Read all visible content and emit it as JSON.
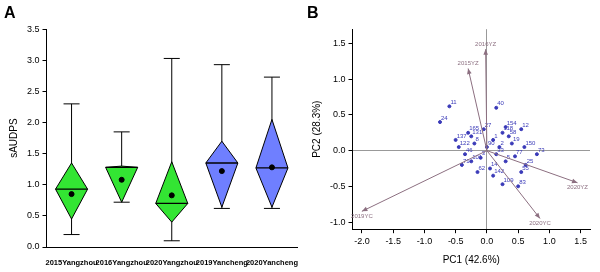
{
  "chart_data": [
    {
      "type": "boxplot",
      "title": "A",
      "y_label": "sAUDPS",
      "categories": [
        "2015Yangzhou",
        "2016Yangzhou",
        "2020Yangzhou",
        "2019Yancheng",
        "2020Yancheng"
      ],
      "colors": [
        "#33e533",
        "#33e533",
        "#33e533",
        "#6f7fff",
        "#6f7fff"
      ],
      "min": [
        0.2,
        0.72,
        0.1,
        0.62,
        0.62
      ],
      "q1": [
        0.45,
        0.72,
        0.4,
        0.64,
        0.64
      ],
      "median": [
        0.93,
        1.28,
        0.7,
        1.35,
        1.27
      ],
      "q3": [
        1.35,
        1.3,
        1.37,
        1.7,
        2.05
      ],
      "max": [
        2.3,
        1.85,
        3.03,
        2.93,
        2.73
      ],
      "mean": [
        0.85,
        1.08,
        0.83,
        1.22,
        1.28
      ],
      "ylim": [
        0,
        3.5
      ],
      "yticks": [
        {
          "value": 0,
          "label": "0.0"
        },
        {
          "value": 0.5,
          "label": "0.5"
        },
        {
          "value": 1,
          "label": "1.0"
        },
        {
          "value": 1.5,
          "label": "1.5"
        },
        {
          "value": 2,
          "label": "2.0"
        },
        {
          "value": 2.5,
          "label": "2.5"
        },
        {
          "value": 3,
          "label": "3.0"
        },
        {
          "value": 3.5,
          "label": "3.5"
        }
      ],
      "grid": false
    },
    {
      "type": "biplot",
      "title": "B",
      "x_label": "PC1 (42.6%)",
      "y_label": "PC2 (28.3%)",
      "color": "#3a3ab8",
      "points": {
        "labels": [
          "11",
          "24",
          "40",
          "12",
          "154",
          "71",
          "73",
          "109",
          "55",
          "83",
          "25",
          "122",
          "165",
          "131",
          "1",
          "2",
          "3",
          "5",
          "8",
          "14",
          "19",
          "27",
          "33",
          "46",
          "58",
          "62",
          "77",
          "90",
          "101",
          "118",
          "137",
          "142",
          "150"
        ],
        "x": [
          -0.6,
          -0.75,
          0.15,
          0.55,
          0.3,
          -0.4,
          0.8,
          0.25,
          0.55,
          0.5,
          0.62,
          -0.45,
          -0.3,
          -0.25,
          0.1,
          0.2,
          -0.1,
          0.3,
          -0.2,
          0.05,
          0.4,
          -0.05,
          0.15,
          -0.35,
          0.35,
          -0.15,
          0.45,
          0.0,
          -0.25,
          0.25,
          -0.5,
          0.1,
          0.6
        ],
        "y": [
          0.62,
          0.4,
          0.6,
          0.3,
          0.33,
          -0.2,
          -0.05,
          -0.47,
          -0.3,
          -0.5,
          -0.2,
          0.05,
          0.25,
          0.2,
          0.15,
          0.05,
          -0.1,
          -0.15,
          0.1,
          -0.25,
          0.1,
          0.3,
          -0.05,
          -0.05,
          0.2,
          -0.3,
          -0.08,
          0.05,
          -0.15,
          0.25,
          0.15,
          -0.35,
          0.05
        ]
      },
      "vectors": {
        "labels": [
          "2016YZ",
          "2015YZ",
          "2019YC",
          "2020YZ",
          "2020YC"
        ],
        "x": [
          -0.02,
          -0.3,
          -2.0,
          1.45,
          0.85
        ],
        "y": [
          1.42,
          1.15,
          -0.85,
          -0.45,
          -0.95
        ],
        "color": "#8c6f80"
      },
      "xlim": [
        -2.15,
        1.65
      ],
      "xticks": [
        {
          "value": -2,
          "label": "-2.0"
        },
        {
          "value": -1.5,
          "label": "-1.5"
        },
        {
          "value": -1,
          "label": "-1.0"
        },
        {
          "value": -0.5,
          "label": "-0.5"
        },
        {
          "value": 0,
          "label": "0.0"
        },
        {
          "value": 0.5,
          "label": "0.5"
        },
        {
          "value": 1,
          "label": "1.0"
        },
        {
          "value": 1.5,
          "label": "1.5"
        }
      ],
      "ylim": [
        -1.1,
        1.7
      ],
      "yticks": [
        {
          "value": -1,
          "label": "-1.0"
        },
        {
          "value": -0.5,
          "label": "-0.5"
        },
        {
          "value": 0,
          "label": "0.0"
        },
        {
          "value": 0.5,
          "label": "0.5"
        },
        {
          "value": 1,
          "label": "1.0"
        },
        {
          "value": 1.5,
          "label": "1.5"
        }
      ],
      "grid": false
    }
  ]
}
